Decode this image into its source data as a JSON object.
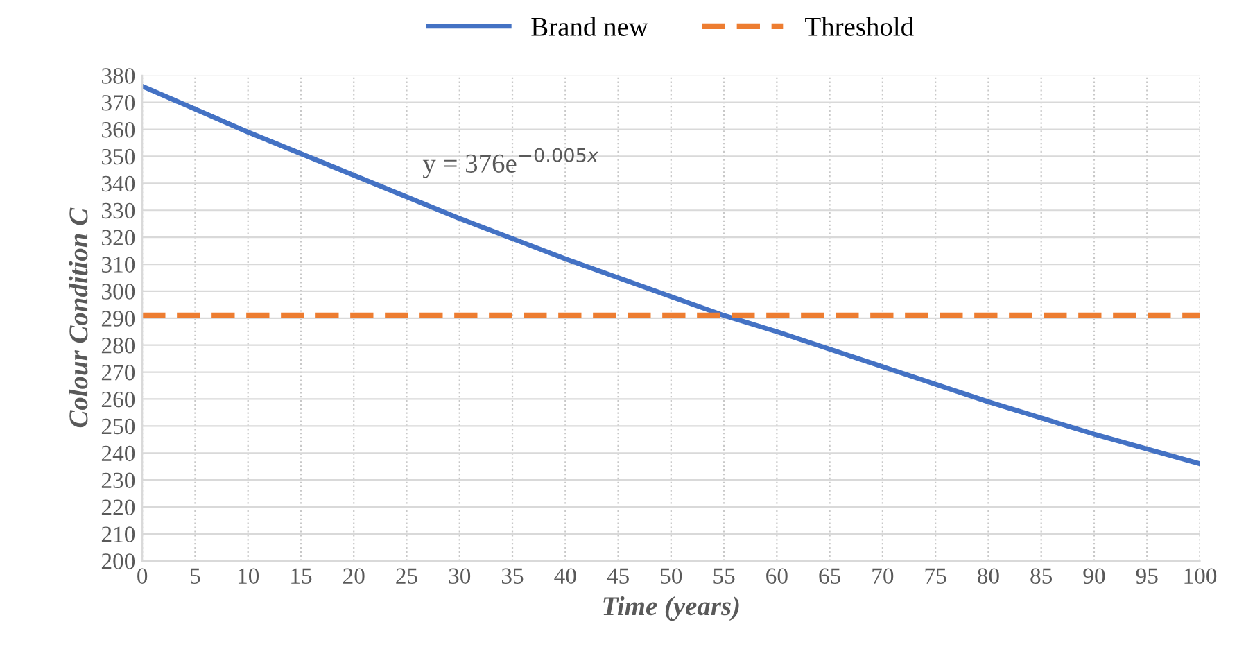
{
  "chart_data": {
    "type": "line",
    "xlabel": "Time (years)",
    "ylabel": "Colour Condition C",
    "series": [
      {
        "name": "Brand new",
        "color": "#4472c4",
        "line_style": "solid",
        "x": [
          0,
          10,
          20,
          30,
          40,
          50,
          55,
          60,
          70,
          80,
          90,
          100
        ],
        "values": [
          376,
          359,
          343,
          327,
          312,
          298,
          291,
          285,
          272,
          259,
          247,
          236
        ]
      },
      {
        "name": "Threshold",
        "color": "#ed7d31",
        "line_style": "dashed",
        "x": [
          0,
          100
        ],
        "values": [
          291,
          291
        ]
      }
    ],
    "annotations": [
      "y = 376e$^{−0.005x}$"
    ],
    "xlim": [
      0,
      100
    ],
    "xticks": [
      0,
      5,
      10,
      15,
      20,
      25,
      30,
      35,
      40,
      45,
      50,
      55,
      60,
      65,
      70,
      75,
      80,
      85,
      90,
      95,
      100
    ],
    "ylim": [
      200,
      380
    ],
    "yticks": [
      200,
      210,
      220,
      230,
      240,
      250,
      260,
      270,
      280,
      290,
      300,
      310,
      320,
      330,
      340,
      350,
      360,
      370,
      380
    ],
    "grid": true,
    "legend": "top",
    "marker": "none"
  }
}
